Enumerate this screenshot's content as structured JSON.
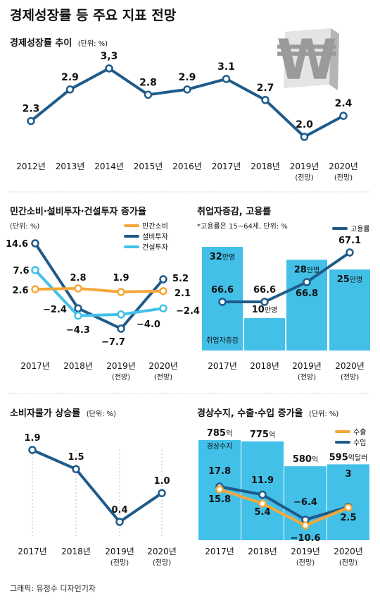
{
  "main_title": "경제성장률 등 주요 지표 전망",
  "credit": "그래픽: 유정수 디자인기자",
  "colors": {
    "navy": "#1f5b8a",
    "sky": "#42c0e8",
    "orange": "#f5a73a",
    "axis_text": "#222222"
  },
  "chart_data": [
    {
      "id": "gdp",
      "type": "line",
      "title": "경제성장률 추이",
      "unit": "(단위: %)",
      "categories": [
        "2012년",
        "2013년",
        "2014년",
        "2015년",
        "2016년",
        "2017년",
        "2018년",
        "2019년",
        "2020년"
      ],
      "sub_labels": [
        "",
        "",
        "",
        "",
        "",
        "",
        "",
        "(전망)",
        "(전망)"
      ],
      "series": [
        {
          "values": [
            2.3,
            2.9,
            3.3,
            2.8,
            2.9,
            3.1,
            2.7,
            2.0,
            2.4
          ],
          "labels": [
            "2.3",
            "2.9",
            "3,3",
            "2.8",
            "2.9",
            "3.1",
            "2.7",
            "2.0",
            "2.4"
          ]
        }
      ]
    },
    {
      "id": "consumption",
      "type": "line",
      "title": "민간소비·설비투자·건설투자 증가율",
      "unit": "(단위: %)",
      "categories": [
        "2017년",
        "2018년",
        "2019년",
        "2020년"
      ],
      "sub_labels": [
        "",
        "",
        "(전망)",
        "(전망)"
      ],
      "series": [
        {
          "name": "민간소비",
          "values": [
            2.6,
            2.8,
            1.9,
            2.1
          ],
          "labels": [
            "2.6",
            "2.8",
            "1.9",
            "2.1"
          ]
        },
        {
          "name": "설비투자",
          "values": [
            14.6,
            -2.4,
            -7.7,
            5.2
          ],
          "labels": [
            "14.6",
            "−2.4",
            "−7.7",
            "5.2"
          ]
        },
        {
          "name": "건설투자",
          "values": [
            7.6,
            -4.3,
            -4.0,
            -2.4
          ],
          "labels": [
            "7.6",
            "−4.3",
            "−4.0",
            "−2.4"
          ]
        }
      ]
    },
    {
      "id": "employment",
      "type": "bar",
      "title": "취업자증감, 고용률",
      "unit": "*고용률은 15~64세, 단위: %",
      "categories": [
        "2017년",
        "2018년",
        "2019년",
        "2020년"
      ],
      "sub_labels": [
        "",
        "",
        "(전망)",
        "(전망)"
      ],
      "bar_series": {
        "name": "취업자증감",
        "values": [
          32,
          10,
          28,
          25
        ],
        "numbers": [
          "32",
          "10",
          "28",
          "25"
        ],
        "unit_suffix": "만명"
      },
      "line_series": {
        "name": "고용률",
        "values": [
          66.6,
          66.6,
          66.8,
          67.1
        ],
        "labels": [
          "66.6",
          "66.6",
          "66.8",
          "67.1"
        ]
      }
    },
    {
      "id": "cpi",
      "type": "line",
      "title": "소비자물가 상승률",
      "unit": "(단위: %)",
      "categories": [
        "2017년",
        "2018년",
        "2019년",
        "2020년"
      ],
      "sub_labels": [
        "",
        "",
        "(전망)",
        "(전망)"
      ],
      "series": [
        {
          "values": [
            1.9,
            1.5,
            0.4,
            1.0
          ],
          "labels": [
            "1.9",
            "1.5",
            "0.4",
            "1.0"
          ]
        }
      ]
    },
    {
      "id": "trade",
      "type": "bar",
      "title": "경상수지, 수출·수입 증가율",
      "unit": "(단위: %)",
      "categories": [
        "2017년",
        "2018년",
        "2019년",
        "2020년"
      ],
      "sub_labels": [
        "",
        "",
        "(전망)",
        "(전망)"
      ],
      "bar_series": {
        "name": "경상수지",
        "values": [
          785,
          775,
          580,
          595
        ],
        "numbers": [
          "785",
          "775",
          "580",
          "595"
        ],
        "suffixes": [
          "억",
          "억",
          "억",
          "억달러"
        ]
      },
      "line_series": [
        {
          "name": "수출",
          "values": [
            15.8,
            5.4,
            -10.6,
            2.5
          ],
          "labels": [
            "15.8",
            "5.4",
            "−10.6",
            "2.5"
          ]
        },
        {
          "name": "수입",
          "values": [
            17.8,
            11.9,
            -6.4,
            3.0
          ],
          "labels": [
            "17.8",
            "11.9",
            "−6.4",
            "3"
          ]
        }
      ]
    }
  ]
}
